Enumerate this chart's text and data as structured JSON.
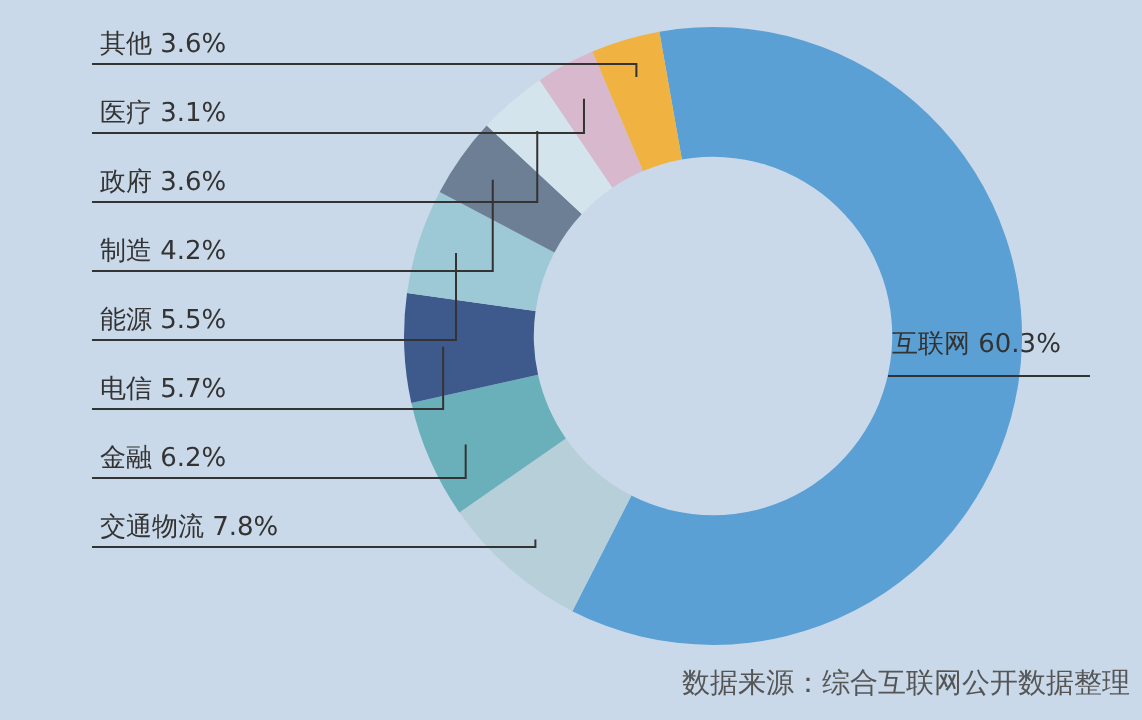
{
  "chart_data": {
    "type": "donut",
    "categories": [
      "互联网",
      "交通物流",
      "金融",
      "电信",
      "能源",
      "制造",
      "政府",
      "医疗",
      "其他"
    ],
    "values": [
      60.3,
      7.8,
      6.2,
      5.7,
      5.5,
      4.2,
      3.6,
      3.1,
      3.6
    ],
    "value_labels": [
      "60.3%",
      "7.8%",
      "6.2%",
      "5.7%",
      "5.5%",
      "4.2%",
      "3.6%",
      "3.1%",
      "3.6%"
    ],
    "colors": [
      "#5aa0d4",
      "#b7cfd8",
      "#6ab0bb",
      "#3e5a8c",
      "#9dc8d6",
      "#6d7f95",
      "#d4e4ec",
      "#d8b8cc",
      "#f0b240"
    ],
    "legend": false,
    "annotations": [
      "数据来源：综合互联网公开数据整理"
    ]
  }
}
